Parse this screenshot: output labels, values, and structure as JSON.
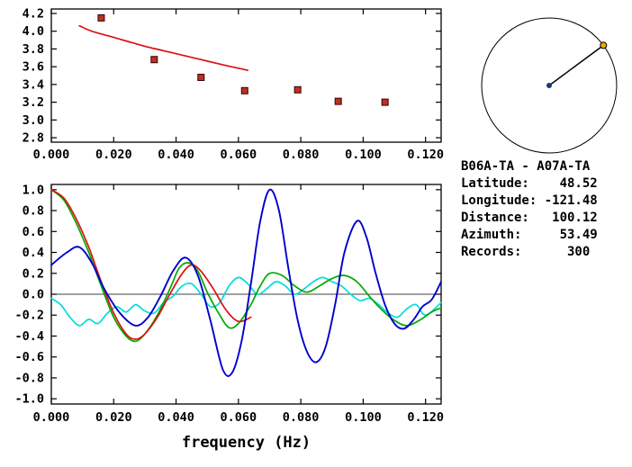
{
  "info": {
    "lines": [
      "B06A-TA - A07A-TA",
      "Latitude:    48.52",
      "Longitude: -121.48",
      "Distance:   100.12",
      "Azimuth:     53.49",
      "Records:      300"
    ]
  },
  "chart_data": [
    {
      "name": "dispersion-panel",
      "type": "scatter",
      "title": "",
      "xlabel": "",
      "ylabel": "",
      "xlim": [
        0,
        0.125
      ],
      "ylim": [
        2.75,
        4.25
      ],
      "xticks": [
        0,
        0.02,
        0.04,
        0.06,
        0.08,
        0.1,
        0.12
      ],
      "xtick_labels": [
        "0.000",
        "0.020",
        "0.040",
        "0.060",
        "0.080",
        "0.100",
        "0.120"
      ],
      "yticks": [
        2.8,
        3.0,
        3.2,
        3.4,
        3.6,
        3.8,
        4.0,
        4.2
      ],
      "ytick_labels": [
        "2.8",
        "3.0",
        "3.2",
        "3.4",
        "3.6",
        "3.8",
        "4.0",
        "4.2"
      ],
      "grid": false,
      "series": [
        {
          "name": "dispersion-curve",
          "type": "line",
          "color": "#dd1111",
          "width": 1.7,
          "points": [
            [
              0.009,
              4.06
            ],
            [
              0.013,
              4.0
            ],
            [
              0.018,
              3.95
            ],
            [
              0.024,
              3.89
            ],
            [
              0.03,
              3.83
            ],
            [
              0.036,
              3.78
            ],
            [
              0.042,
              3.73
            ],
            [
              0.048,
              3.68
            ],
            [
              0.054,
              3.63
            ],
            [
              0.059,
              3.59
            ],
            [
              0.063,
              3.56
            ]
          ]
        },
        {
          "name": "dispersion-points",
          "type": "scatter",
          "marker": "square",
          "color": "#b93226",
          "edge": "#3a0000",
          "size": 7,
          "points": [
            [
              0.016,
              4.15
            ],
            [
              0.033,
              3.68
            ],
            [
              0.048,
              3.48
            ],
            [
              0.062,
              3.33
            ],
            [
              0.079,
              3.34
            ],
            [
              0.092,
              3.21
            ],
            [
              0.107,
              3.2
            ]
          ]
        }
      ]
    },
    {
      "name": "correlation-panel",
      "type": "line",
      "title": "",
      "xlabel": "frequency (Hz)",
      "ylabel": "",
      "xlim": [
        0,
        0.125
      ],
      "ylim": [
        -1.05,
        1.05
      ],
      "xticks": [
        0,
        0.02,
        0.04,
        0.06,
        0.08,
        0.1,
        0.12
      ],
      "xtick_labels": [
        "0.000",
        "0.020",
        "0.040",
        "0.060",
        "0.080",
        "0.100",
        "0.120"
      ],
      "yticks": [
        -1.0,
        -0.8,
        -0.6,
        -0.4,
        -0.2,
        0.0,
        0.2,
        0.4,
        0.6,
        0.8,
        1.0
      ],
      "ytick_labels": [
        "-1.0",
        "-0.8",
        "-0.6",
        "-0.4",
        "-0.2",
        "0.0",
        "0.2",
        "0.4",
        "0.6",
        "0.8",
        "1.0"
      ],
      "zero_line": true,
      "grid": false,
      "series": [
        {
          "name": "imag-cross-spectrum",
          "type": "line",
          "color": "#00dcdc",
          "width": 1.7,
          "points": [
            [
              0,
              -0.04
            ],
            [
              0.003,
              -0.1
            ],
            [
              0.006,
              -0.22
            ],
            [
              0.009,
              -0.3
            ],
            [
              0.012,
              -0.24
            ],
            [
              0.015,
              -0.28
            ],
            [
              0.018,
              -0.18
            ],
            [
              0.021,
              -0.12
            ],
            [
              0.024,
              -0.17
            ],
            [
              0.027,
              -0.1
            ],
            [
              0.03,
              -0.16
            ],
            [
              0.033,
              -0.18
            ],
            [
              0.036,
              -0.08
            ],
            [
              0.039,
              -0.02
            ],
            [
              0.042,
              0.08
            ],
            [
              0.045,
              0.1
            ],
            [
              0.048,
              0.0
            ],
            [
              0.051,
              -0.12
            ],
            [
              0.054,
              -0.08
            ],
            [
              0.057,
              0.08
            ],
            [
              0.06,
              0.16
            ],
            [
              0.063,
              0.1
            ],
            [
              0.066,
              0.0
            ],
            [
              0.069,
              0.05
            ],
            [
              0.072,
              0.12
            ],
            [
              0.075,
              0.08
            ],
            [
              0.078,
              0.0
            ],
            [
              0.081,
              0.05
            ],
            [
              0.084,
              0.12
            ],
            [
              0.087,
              0.16
            ],
            [
              0.09,
              0.12
            ],
            [
              0.093,
              0.08
            ],
            [
              0.096,
              0.0
            ],
            [
              0.099,
              -0.06
            ],
            [
              0.102,
              -0.04
            ],
            [
              0.105,
              -0.1
            ],
            [
              0.108,
              -0.18
            ],
            [
              0.111,
              -0.22
            ],
            [
              0.114,
              -0.14
            ],
            [
              0.117,
              -0.1
            ],
            [
              0.12,
              -0.2
            ],
            [
              0.125,
              -0.08
            ]
          ]
        },
        {
          "name": "model-correlation",
          "type": "line",
          "color": "#00a800",
          "width": 1.7,
          "points": [
            [
              0,
              1.0
            ],
            [
              0.004,
              0.9
            ],
            [
              0.008,
              0.68
            ],
            [
              0.012,
              0.4
            ],
            [
              0.016,
              0.08
            ],
            [
              0.02,
              -0.22
            ],
            [
              0.024,
              -0.4
            ],
            [
              0.027,
              -0.45
            ],
            [
              0.03,
              -0.38
            ],
            [
              0.034,
              -0.2
            ],
            [
              0.038,
              0.05
            ],
            [
              0.041,
              0.25
            ],
            [
              0.044,
              0.3
            ],
            [
              0.047,
              0.22
            ],
            [
              0.05,
              0.02
            ],
            [
              0.054,
              -0.2
            ],
            [
              0.057,
              -0.32
            ],
            [
              0.06,
              -0.28
            ],
            [
              0.064,
              -0.1
            ],
            [
              0.067,
              0.08
            ],
            [
              0.07,
              0.2
            ],
            [
              0.074,
              0.18
            ],
            [
              0.078,
              0.08
            ],
            [
              0.082,
              0.02
            ],
            [
              0.086,
              0.08
            ],
            [
              0.09,
              0.15
            ],
            [
              0.094,
              0.18
            ],
            [
              0.098,
              0.12
            ],
            [
              0.102,
              -0.02
            ],
            [
              0.106,
              -0.15
            ],
            [
              0.11,
              -0.25
            ],
            [
              0.114,
              -0.3
            ],
            [
              0.118,
              -0.25
            ],
            [
              0.122,
              -0.17
            ],
            [
              0.125,
              -0.13
            ]
          ]
        },
        {
          "name": "fitted-correlation",
          "type": "line",
          "color": "#dd1111",
          "width": 1.7,
          "points": [
            [
              0,
              1.0
            ],
            [
              0.004,
              0.92
            ],
            [
              0.008,
              0.72
            ],
            [
              0.012,
              0.45
            ],
            [
              0.016,
              0.12
            ],
            [
              0.02,
              -0.18
            ],
            [
              0.024,
              -0.38
            ],
            [
              0.027,
              -0.43
            ],
            [
              0.03,
              -0.38
            ],
            [
              0.034,
              -0.22
            ],
            [
              0.038,
              0.0
            ],
            [
              0.042,
              0.2
            ],
            [
              0.045,
              0.28
            ],
            [
              0.048,
              0.22
            ],
            [
              0.052,
              0.05
            ],
            [
              0.056,
              -0.15
            ],
            [
              0.06,
              -0.26
            ],
            [
              0.064,
              -0.22
            ]
          ]
        },
        {
          "name": "real-cross-spectrum",
          "type": "line",
          "color": "#0000cd",
          "width": 1.9,
          "points": [
            [
              0,
              0.28
            ],
            [
              0.005,
              0.4
            ],
            [
              0.009,
              0.45
            ],
            [
              0.013,
              0.3
            ],
            [
              0.017,
              0.05
            ],
            [
              0.022,
              -0.18
            ],
            [
              0.027,
              -0.3
            ],
            [
              0.031,
              -0.22
            ],
            [
              0.035,
              -0.02
            ],
            [
              0.039,
              0.22
            ],
            [
              0.043,
              0.35
            ],
            [
              0.047,
              0.18
            ],
            [
              0.051,
              -0.25
            ],
            [
              0.055,
              -0.72
            ],
            [
              0.058,
              -0.75
            ],
            [
              0.061,
              -0.45
            ],
            [
              0.064,
              0.1
            ],
            [
              0.067,
              0.7
            ],
            [
              0.07,
              1.0
            ],
            [
              0.073,
              0.8
            ],
            [
              0.076,
              0.25
            ],
            [
              0.079,
              -0.25
            ],
            [
              0.082,
              -0.55
            ],
            [
              0.085,
              -0.65
            ],
            [
              0.088,
              -0.5
            ],
            [
              0.091,
              -0.1
            ],
            [
              0.094,
              0.4
            ],
            [
              0.098,
              0.7
            ],
            [
              0.101,
              0.55
            ],
            [
              0.104,
              0.2
            ],
            [
              0.107,
              -0.1
            ],
            [
              0.11,
              -0.28
            ],
            [
              0.113,
              -0.33
            ],
            [
              0.116,
              -0.25
            ],
            [
              0.119,
              -0.12
            ],
            [
              0.122,
              -0.05
            ],
            [
              0.125,
              0.12
            ]
          ]
        }
      ]
    },
    {
      "name": "azimuth-panel",
      "type": "azimuth_circle",
      "azimuth_deg": 53.49,
      "center_marker_color": "#1a3a6b",
      "end_marker_color": "#f0a500"
    }
  ]
}
